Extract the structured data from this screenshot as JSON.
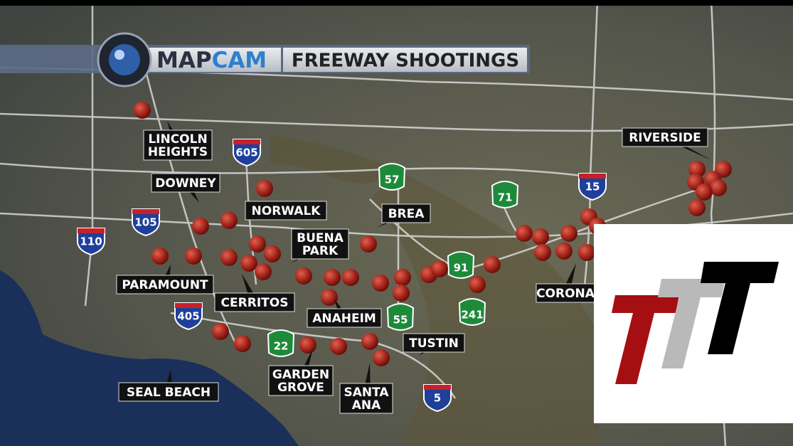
{
  "header": {
    "brand": [
      "MAP",
      "CAM"
    ],
    "title": "FREEWAY SHOOTINGS"
  },
  "places": [
    {
      "lines": [
        "LINCOLN",
        "HEIGHTS"
      ]
    },
    {
      "lines": [
        "DOWNEY"
      ]
    },
    {
      "lines": [
        "NORWALK"
      ]
    },
    {
      "lines": [
        "BREA"
      ]
    },
    {
      "lines": [
        "BUENA",
        "PARK"
      ]
    },
    {
      "lines": [
        "PARAMOUNT"
      ]
    },
    {
      "lines": [
        "CERRITOS"
      ]
    },
    {
      "lines": [
        "ANAHEIM"
      ]
    },
    {
      "lines": [
        "TUSTIN"
      ]
    },
    {
      "lines": [
        "GARDEN",
        "GROVE"
      ]
    },
    {
      "lines": [
        "SANTA",
        "ANA"
      ]
    },
    {
      "lines": [
        "SEAL BEACH"
      ]
    },
    {
      "lines": [
        "RIVERSIDE"
      ]
    },
    {
      "lines": [
        "CORONA"
      ]
    }
  ],
  "shields": [
    "605",
    "105",
    "110",
    "405",
    "5",
    "15",
    "57",
    "71",
    "91",
    "55",
    "241",
    "22"
  ]
}
